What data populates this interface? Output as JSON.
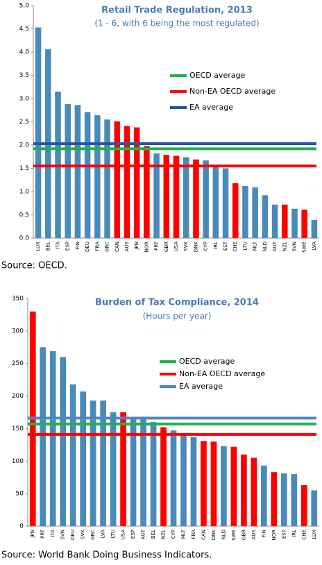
{
  "chart_data": [
    {
      "type": "bar",
      "title": "Retail Trade Regulation, 2013",
      "subtitle": "(1 - 6, with 6 being the most regulated)",
      "source": "Source: OECD.",
      "categories": [
        "LUX",
        "BEL",
        "ITA",
        "ESP",
        "FIN",
        "DEU",
        "FRA",
        "GRC",
        "CAN",
        "AUS",
        "JPN",
        "NOR",
        "PRT",
        "GBR",
        "USA",
        "SVK",
        "DNK",
        "CYP",
        "IRL",
        "EST",
        "CHE",
        "LTU",
        "MLT",
        "NLD",
        "AUT",
        "NZL",
        "SVN",
        "SWE",
        "LVA"
      ],
      "values": [
        4.53,
        4.06,
        3.15,
        2.88,
        2.86,
        2.71,
        2.64,
        2.55,
        2.51,
        2.41,
        2.38,
        1.98,
        1.82,
        1.79,
        1.77,
        1.74,
        1.69,
        1.67,
        1.55,
        1.5,
        1.18,
        1.12,
        1.09,
        0.92,
        0.72,
        0.72,
        0.63,
        0.61,
        0.39
      ],
      "colors": [
        "#4a8ab8",
        "#4a8ab8",
        "#4a8ab8",
        "#4a8ab8",
        "#4a8ab8",
        "#4a8ab8",
        "#4a8ab8",
        "#4a8ab8",
        "#ff0000",
        "#ff0000",
        "#ff0000",
        "#ff0000",
        "#4a8ab8",
        "#ff0000",
        "#ff0000",
        "#4a8ab8",
        "#ff0000",
        "#4a8ab8",
        "#4a8ab8",
        "#4a8ab8",
        "#ff0000",
        "#4a8ab8",
        "#4a8ab8",
        "#4a8ab8",
        "#4a8ab8",
        "#ff0000",
        "#4a8ab8",
        "#ff0000",
        "#4a8ab8"
      ],
      "reference_lines": [
        {
          "name": "OECD average",
          "color": "#22b14c",
          "value": 1.92
        },
        {
          "name": "Non-EA OECD average",
          "color": "#ff0000",
          "value": 1.55
        },
        {
          "name": "EA average",
          "color": "#2456a6",
          "value": 2.03
        }
      ],
      "ylim": [
        0,
        5
      ],
      "yticks": [
        {
          "value": 0,
          "label": "0.0"
        },
        {
          "value": 0.5,
          "label": "0.5"
        },
        {
          "value": 1,
          "label": "1.0"
        },
        {
          "value": 1.5,
          "label": "1.5"
        },
        {
          "value": 2,
          "label": "2.0"
        },
        {
          "value": 2.5,
          "label": "2.5"
        },
        {
          "value": 3,
          "label": "3.0"
        },
        {
          "value": 3.5,
          "label": "3.5"
        },
        {
          "value": 4,
          "label": "4.0"
        },
        {
          "value": 4.5,
          "label": "4.5"
        },
        {
          "value": 5,
          "label": "5.0"
        }
      ]
    },
    {
      "type": "bar",
      "title": "Burden of Tax Compliance, 2014",
      "subtitle": "(Hours per year)",
      "source": "Source: World Bank Doing Business Indicators.",
      "categories": [
        "JPN",
        "PRT",
        "ITA",
        "SVN",
        "DEU",
        "SVK",
        "GRC",
        "LVA",
        "LTU",
        "USA",
        "ESP",
        "AUT",
        "BEL",
        "NZL",
        "CYP",
        "MLT",
        "FRA",
        "CAN",
        "DNK",
        "NLD",
        "SWE",
        "GBR",
        "AUS",
        "FIN",
        "NOR",
        "EST",
        "IRL",
        "CHE",
        "LUX"
      ],
      "values": [
        330,
        275,
        269,
        260,
        218,
        207,
        193,
        193,
        175,
        175,
        167,
        166,
        160,
        152,
        147,
        139,
        137,
        131,
        130,
        123,
        122,
        110,
        105,
        93,
        83,
        81,
        80,
        63,
        55
      ],
      "colors": [
        "#ff0000",
        "#4a8ab8",
        "#4a8ab8",
        "#4a8ab8",
        "#4a8ab8",
        "#4a8ab8",
        "#4a8ab8",
        "#4a8ab8",
        "#4a8ab8",
        "#ff0000",
        "#4a8ab8",
        "#4a8ab8",
        "#4a8ab8",
        "#ff0000",
        "#4a8ab8",
        "#4a8ab8",
        "#4a8ab8",
        "#ff0000",
        "#ff0000",
        "#4a8ab8",
        "#ff0000",
        "#ff0000",
        "#ff0000",
        "#4a8ab8",
        "#ff0000",
        "#4a8ab8",
        "#4a8ab8",
        "#ff0000",
        "#4a8ab8"
      ],
      "reference_lines": [
        {
          "name": "OECD average",
          "color": "#22b14c",
          "value": 157
        },
        {
          "name": "Non-EA OECD average",
          "color": "#ff0000",
          "value": 141
        },
        {
          "name": "EA average",
          "color": "#4f86c0",
          "value": 166
        }
      ],
      "ylim": [
        0,
        350
      ],
      "yticks": [
        0,
        50,
        100,
        150,
        200,
        250,
        300,
        350
      ]
    }
  ]
}
